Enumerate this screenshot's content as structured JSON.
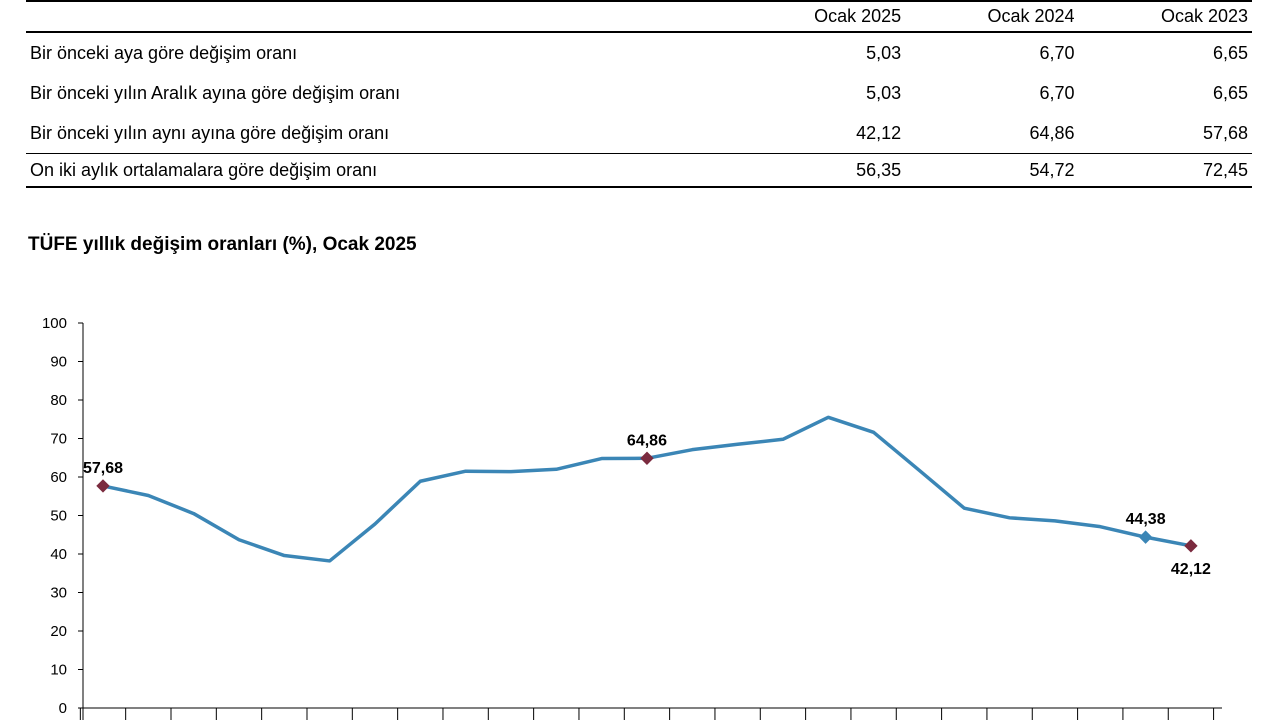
{
  "table": {
    "headers": [
      "",
      "Ocak 2025",
      "Ocak 2024",
      "Ocak 2023"
    ],
    "rows": [
      {
        "label": "Bir önceki aya göre değişim oranı",
        "values": [
          "5,03",
          "6,70",
          "6,65"
        ]
      },
      {
        "label": "Bir önceki yılın Aralık ayına göre değişim oranı",
        "values": [
          "5,03",
          "6,70",
          "6,65"
        ]
      },
      {
        "label": "Bir önceki yılın aynı ayına göre değişim oranı",
        "values": [
          "42,12",
          "64,86",
          "57,68"
        ]
      },
      {
        "label": "On iki aylık ortalamalara göre değişim oranı",
        "values": [
          "56,35",
          "54,72",
          "72,45"
        ]
      }
    ]
  },
  "chart_data": {
    "type": "line",
    "title": "TÜFE yıllık değişim oranları (%), Ocak 2025",
    "xlabel": "",
    "ylabel": "",
    "ylim": [
      0,
      100
    ],
    "yticks": [
      "0",
      "10",
      "20",
      "30",
      "40",
      "50",
      "60",
      "70",
      "80",
      "90",
      "100"
    ],
    "grid": false,
    "series": [
      {
        "values": [
          57.68,
          55.2,
          50.5,
          43.7,
          39.6,
          38.2,
          47.8,
          58.9,
          61.5,
          61.4,
          62.0,
          64.8,
          64.86,
          67.1,
          68.5,
          69.8,
          75.5,
          71.6,
          61.8,
          51.9,
          49.4,
          48.6,
          47.1,
          44.38,
          42.12
        ],
        "color": "#3b86b6"
      }
    ],
    "data_labels": [
      {
        "index": 0,
        "text": "57,68",
        "position": "above"
      },
      {
        "index": 12,
        "text": "64,86",
        "position": "above"
      },
      {
        "index": 23,
        "text": "44,38",
        "position": "above"
      },
      {
        "index": 24,
        "text": "42,12",
        "position": "below"
      }
    ],
    "highlight_markers": [
      {
        "index": 0,
        "color": "#7b2b3f"
      },
      {
        "index": 12,
        "color": "#7b2b3f"
      },
      {
        "index": 23,
        "color": "#3b86b6"
      },
      {
        "index": 24,
        "color": "#7b2b3f"
      }
    ]
  }
}
